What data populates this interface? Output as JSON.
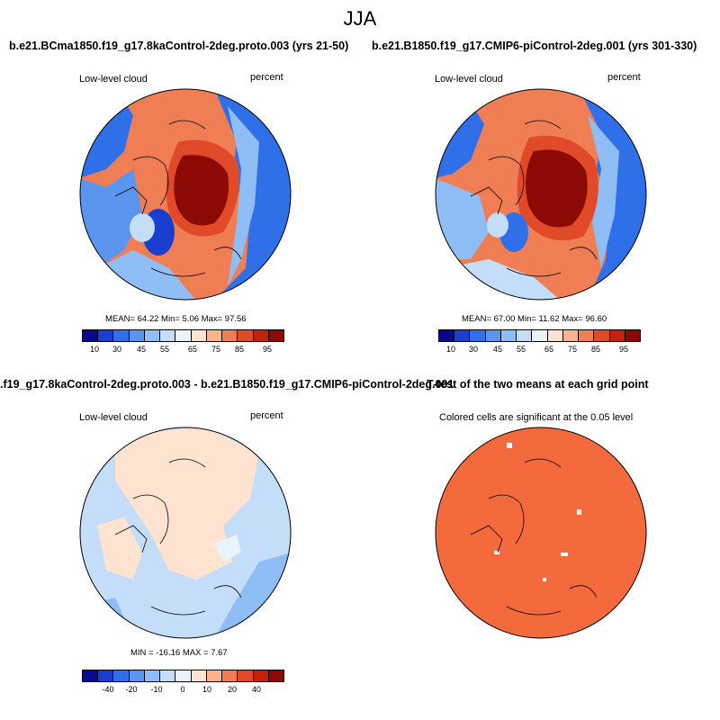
{
  "figure": {
    "title": "JJA"
  },
  "panels": {
    "top_left": {
      "title": "b.e21.BCma1850.f19_g17.8kaControl-2deg.proto.003 (yrs 21-50)",
      "left_label": "Low-level cloud",
      "right_label": "percent",
      "stats": "MEAN=  64.22  Min=   5.06  Max=  97.56"
    },
    "top_right": {
      "title": "b.e21.B1850.f19_g17.CMIP6-piControl-2deg.001 (yrs 301-330)",
      "left_label": "Low-level cloud",
      "right_label": "percent",
      "stats": "MEAN=  67.00  Min=  11.62  Max=  96.60"
    },
    "bottom_left": {
      "title": ".f19_g17.8kaControl-2deg.proto.003 - b.e21.B1850.f19_g17.CMIP6-piControl-2deg.001",
      "left_label": "Low-level cloud",
      "right_label": "percent",
      "stats": "MIN = -16.16 MAX =   7.67"
    },
    "bottom_right": {
      "title": "T-test of the two means at each grid point",
      "subtitle": "Colored cells are significant at the 0.05 level"
    }
  },
  "colorbars": {
    "absolute": {
      "ticks": [
        "10",
        "30",
        "45",
        "55",
        "65",
        "75",
        "85",
        "95"
      ],
      "colors": [
        "#08088c",
        "#1a3fd0",
        "#2f6fe8",
        "#5a95f0",
        "#8fbdf5",
        "#c4ddf8",
        "#e9f3fb",
        "#fde3d0",
        "#f9b48e",
        "#f07e55",
        "#e04a28",
        "#c2220c",
        "#8c0a06"
      ]
    },
    "difference": {
      "ticks": [
        "-40",
        "-20",
        "-10",
        "0",
        "10",
        "20",
        "40"
      ],
      "colors": [
        "#08088c",
        "#1a3fd0",
        "#2f6fe8",
        "#5a95f0",
        "#8fbdf5",
        "#c4ddf8",
        "#e9f3fb",
        "#fde3d0",
        "#f9b48e",
        "#f07e55",
        "#e04a28",
        "#c2220c",
        "#8c0a06"
      ]
    }
  }
}
